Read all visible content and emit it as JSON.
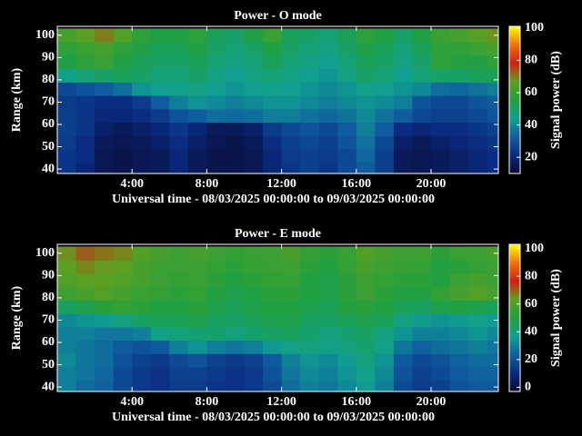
{
  "chart_data": [
    {
      "type": "heatmap",
      "title": "Power - O mode",
      "xlabel": "Universal time - 08/03/2025 00:00:00 to 09/03/2025 00:00:00",
      "ylabel": "Range (km)",
      "colorbar_label": "Signal power (dB)",
      "x": [
        0.5,
        1.5,
        2.5,
        3.5,
        4.5,
        5.5,
        6.5,
        7.5,
        8.5,
        9.5,
        10.5,
        11.5,
        12.5,
        13.5,
        14.5,
        15.5,
        16.5,
        17.5,
        18.5,
        19.5,
        20.5,
        21.5,
        22.5,
        23.5
      ],
      "y": [
        40,
        46,
        52,
        58,
        64,
        70,
        76,
        82,
        88,
        94,
        100
      ],
      "z": [
        [
          24,
          20,
          15,
          14,
          15,
          16,
          20,
          16,
          14,
          14,
          15,
          20,
          24,
          26,
          24,
          28,
          32,
          26,
          16,
          15,
          16,
          18,
          20,
          22
        ],
        [
          24,
          22,
          15,
          14,
          15,
          16,
          20,
          16,
          14,
          14,
          15,
          20,
          25,
          26,
          25,
          28,
          34,
          26,
          16,
          15,
          16,
          18,
          20,
          22
        ],
        [
          25,
          22,
          16,
          15,
          16,
          18,
          22,
          18,
          15,
          14,
          16,
          22,
          26,
          28,
          26,
          30,
          36,
          28,
          18,
          16,
          18,
          20,
          22,
          24
        ],
        [
          26,
          24,
          18,
          16,
          18,
          20,
          24,
          20,
          16,
          16,
          18,
          25,
          28,
          30,
          28,
          32,
          38,
          32,
          22,
          20,
          22,
          22,
          24,
          26
        ],
        [
          26,
          24,
          20,
          20,
          22,
          25,
          30,
          32,
          35,
          34,
          35,
          38,
          38,
          36,
          34,
          36,
          40,
          36,
          32,
          28,
          26,
          26,
          28,
          30
        ],
        [
          25,
          24,
          22,
          22,
          25,
          32,
          38,
          42,
          40,
          38,
          40,
          42,
          42,
          40,
          38,
          40,
          42,
          40,
          38,
          30,
          28,
          28,
          30,
          32
        ],
        [
          28,
          30,
          32,
          35,
          42,
          44,
          45,
          46,
          44,
          42,
          44,
          45,
          44,
          42,
          40,
          42,
          45,
          44,
          42,
          40,
          35,
          34,
          36,
          38
        ],
        [
          45,
          48,
          50,
          52,
          50,
          48,
          48,
          50,
          46,
          44,
          46,
          48,
          46,
          44,
          42,
          46,
          50,
          48,
          44,
          48,
          50,
          50,
          52,
          52
        ],
        [
          55,
          58,
          60,
          55,
          52,
          50,
          50,
          52,
          48,
          46,
          48,
          52,
          48,
          46,
          44,
          48,
          52,
          50,
          46,
          50,
          58,
          56,
          55,
          58
        ],
        [
          58,
          60,
          62,
          58,
          55,
          52,
          52,
          55,
          50,
          48,
          50,
          55,
          50,
          48,
          46,
          50,
          55,
          52,
          48,
          52,
          58,
          58,
          60,
          62
        ],
        [
          62,
          66,
          70,
          64,
          58,
          55,
          55,
          58,
          52,
          50,
          55,
          60,
          52,
          50,
          48,
          52,
          58,
          55,
          50,
          55,
          60,
          62,
          65,
          68
        ]
      ],
      "xlim": [
        0,
        23.6
      ],
      "ylim": [
        38,
        104
      ],
      "xticks": [
        {
          "value": 4,
          "label": "4:00"
        },
        {
          "value": 8,
          "label": "8:00"
        },
        {
          "value": 12,
          "label": "12:00"
        },
        {
          "value": 16,
          "label": "16:00"
        },
        {
          "value": 20,
          "label": "20:00"
        }
      ],
      "yticks": [
        40,
        50,
        60,
        70,
        80,
        90,
        100
      ],
      "clim": [
        10,
        101
      ],
      "cticks": [
        20,
        40,
        60,
        80,
        100
      ],
      "colormap": [
        "#0a0a30",
        "#0a2a80",
        "#1060a0",
        "#10a090",
        "#20a040",
        "#60a020",
        "#d02010",
        "#f07010",
        "#ffff00"
      ]
    },
    {
      "type": "heatmap",
      "title": "Power - E mode",
      "xlabel": "Universal time - 08/03/2025 00:00:00 to 09/03/2025 00:00:00",
      "ylabel": "Range (km)",
      "colorbar_label": "Signal power (dB)",
      "x": [
        0.5,
        1.5,
        2.5,
        3.5,
        4.5,
        5.5,
        6.5,
        7.5,
        8.5,
        9.5,
        10.5,
        11.5,
        12.5,
        13.5,
        14.5,
        15.5,
        16.5,
        17.5,
        18.5,
        19.5,
        20.5,
        21.5,
        22.5,
        23.5
      ],
      "y": [
        40,
        46,
        52,
        58,
        64,
        70,
        76,
        82,
        88,
        94,
        100
      ],
      "z": [
        [
          30,
          26,
          24,
          18,
          14,
          12,
          15,
          15,
          13,
          12,
          14,
          18,
          26,
          30,
          28,
          32,
          36,
          30,
          18,
          15,
          16,
          20,
          22,
          22
        ],
        [
          30,
          28,
          25,
          18,
          14,
          12,
          16,
          16,
          14,
          12,
          14,
          20,
          28,
          32,
          30,
          34,
          38,
          32,
          20,
          16,
          18,
          22,
          24,
          24
        ],
        [
          32,
          28,
          26,
          20,
          16,
          14,
          18,
          20,
          16,
          14,
          16,
          22,
          30,
          34,
          32,
          36,
          40,
          34,
          22,
          18,
          20,
          24,
          26,
          26
        ],
        [
          30,
          28,
          26,
          22,
          20,
          22,
          30,
          34,
          30,
          28,
          30,
          35,
          38,
          40,
          38,
          40,
          42,
          38,
          28,
          24,
          26,
          28,
          30,
          28
        ],
        [
          30,
          30,
          28,
          28,
          30,
          38,
          40,
          42,
          42,
          40,
          42,
          44,
          45,
          42,
          40,
          42,
          44,
          40,
          34,
          30,
          30,
          32,
          34,
          32
        ],
        [
          32,
          34,
          36,
          40,
          44,
          46,
          46,
          48,
          45,
          44,
          46,
          48,
          48,
          45,
          44,
          46,
          48,
          46,
          40,
          36,
          34,
          36,
          38,
          36
        ],
        [
          45,
          48,
          52,
          54,
          52,
          50,
          50,
          52,
          48,
          46,
          48,
          50,
          50,
          48,
          46,
          50,
          52,
          50,
          46,
          45,
          48,
          50,
          48,
          46
        ],
        [
          56,
          58,
          60,
          58,
          55,
          54,
          52,
          54,
          50,
          48,
          50,
          52,
          52,
          50,
          48,
          52,
          56,
          52,
          50,
          50,
          54,
          58,
          60,
          58
        ],
        [
          60,
          62,
          62,
          60,
          58,
          55,
          54,
          55,
          52,
          50,
          52,
          54,
          54,
          50,
          48,
          52,
          56,
          54,
          52,
          52,
          50,
          56,
          58,
          56
        ],
        [
          62,
          66,
          64,
          62,
          58,
          56,
          55,
          56,
          54,
          52,
          54,
          55,
          56,
          52,
          50,
          54,
          58,
          56,
          54,
          54,
          50,
          52,
          54,
          56
        ],
        [
          65,
          70,
          68,
          66,
          60,
          58,
          56,
          58,
          56,
          54,
          55,
          56,
          58,
          54,
          52,
          55,
          60,
          58,
          56,
          56,
          52,
          55,
          56,
          58
        ]
      ],
      "xlim": [
        0,
        23.6
      ],
      "ylim": [
        38,
        104
      ],
      "xticks": [
        {
          "value": 4,
          "label": "4:00"
        },
        {
          "value": 8,
          "label": "8:00"
        },
        {
          "value": 12,
          "label": "12:00"
        },
        {
          "value": 16,
          "label": "16:00"
        },
        {
          "value": 20,
          "label": "20:00"
        }
      ],
      "yticks": [
        40,
        50,
        60,
        70,
        80,
        90,
        100
      ],
      "clim": [
        -3,
        103
      ],
      "cticks": [
        0,
        20,
        40,
        60,
        80,
        100
      ],
      "colormap": [
        "#0a0a30",
        "#0a2a80",
        "#1060a0",
        "#10a090",
        "#20a040",
        "#60a020",
        "#d02010",
        "#f07010",
        "#ffff00"
      ]
    }
  ]
}
